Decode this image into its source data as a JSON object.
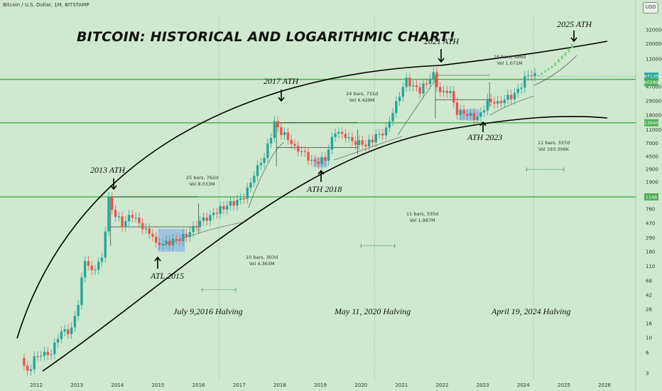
{
  "header": {
    "symbol_line": "Bitcoin / U.S. Dollar, 1M, BITSTAMP",
    "currency_button": "USD"
  },
  "title": "BITCOIN: HISTORICAL AND LOGARITHMIC CHART!",
  "annotations": {
    "ath_2013": "2013 ATH",
    "ath_2017": "2017 ATH",
    "ath_2021": "2021 ATH",
    "ath_2025": "2025 ATH",
    "atl_2015": "ATL 2015",
    "ath_2018": "ATH 2018",
    "ath_2023": "ATH 2023",
    "halving_2016": "July 9,2016 Halving",
    "halving_2020": "May 11, 2020 Halving",
    "halving_2024": "April 19, 2024 Halving"
  },
  "measures": [
    {
      "bars": "25 bars, 762d",
      "vol": "Vol 8.033M"
    },
    {
      "bars": "10 bars, 303d",
      "vol": "Vol 4.363M"
    },
    {
      "bars": "24 bars, 731d",
      "vol": "Vol 6.428M"
    },
    {
      "bars": "11 bars, 335d",
      "vol": "Vol 1.987M"
    },
    {
      "bars": "16 bars, 486d",
      "vol": "Vol 1.071M"
    },
    {
      "bars": "11 bars, 337d",
      "vol": "Vol 193.306K"
    }
  ],
  "price_badges": {
    "current": "67135",
    "countdown": "7d 16h",
    "level_60289": "60289",
    "level_13945": "13945",
    "level_1146": "1146"
  },
  "colors": {
    "background": "#cfe8cf",
    "up_candle": "#26a69a",
    "down_candle": "#ef5350",
    "projection": "#7bd17b",
    "level_line": "#4caf50",
    "accumulation_box": "#8fb8e6"
  },
  "chart_data": {
    "type": "candlestick",
    "title": "BITCOIN: HISTORICAL AND LOGARITHMIC CHART!",
    "y_scale": "log",
    "y_ticks": [
      3,
      6,
      10,
      16,
      26,
      42,
      68,
      110,
      180,
      290,
      470,
      760,
      1900,
      2900,
      4500,
      7000,
      11000,
      18000,
      29000,
      47000,
      120000,
      200000,
      320000
    ],
    "x_ticks": [
      "2012",
      "2013",
      "2014",
      "2015",
      "2016",
      "2017",
      "2018",
      "2019",
      "2020",
      "2021",
      "2022",
      "2023",
      "2024",
      "2025",
      "2026"
    ],
    "horizontal_levels": [
      60289,
      13945,
      1146
    ],
    "last_price": 67135,
    "price_keypoints": [
      [
        "2011-09",
        5
      ],
      [
        "2011-11",
        3
      ],
      [
        "2012-01",
        5
      ],
      [
        "2012-06",
        6
      ],
      [
        "2012-09",
        12
      ],
      [
        "2012-12",
        13
      ],
      [
        "2013-02",
        33
      ],
      [
        "2013-04",
        140
      ],
      [
        "2013-06",
        97
      ],
      [
        "2013-09",
        140
      ],
      [
        "2013-11",
        1146
      ],
      [
        "2013-12",
        750
      ],
      [
        "2014-03",
        450
      ],
      [
        "2014-06",
        640
      ],
      [
        "2014-09",
        385
      ],
      [
        "2014-12",
        320
      ],
      [
        "2015-01",
        220
      ],
      [
        "2015-06",
        260
      ],
      [
        "2015-10",
        310
      ],
      [
        "2015-12",
        430
      ],
      [
        "2016-06",
        670
      ],
      [
        "2016-12",
        960
      ],
      [
        "2017-03",
        1080
      ],
      [
        "2017-06",
        2500
      ],
      [
        "2017-09",
        4300
      ],
      [
        "2017-12",
        13945
      ],
      [
        "2018-02",
        10300
      ],
      [
        "2018-06",
        6400
      ],
      [
        "2018-11",
        4000
      ],
      [
        "2018-12",
        3700
      ],
      [
        "2019-03",
        4100
      ],
      [
        "2019-06",
        10800
      ],
      [
        "2019-09",
        8300
      ],
      [
        "2019-12",
        7200
      ],
      [
        "2020-03",
        6400
      ],
      [
        "2020-06",
        9100
      ],
      [
        "2020-09",
        10800
      ],
      [
        "2020-12",
        29000
      ],
      [
        "2021-03",
        58800
      ],
      [
        "2021-07",
        41500
      ],
      [
        "2021-10",
        61300
      ],
      [
        "2021-11",
        69000
      ],
      [
        "2022-01",
        38500
      ],
      [
        "2022-04",
        37700
      ],
      [
        "2022-06",
        19900
      ],
      [
        "2022-11",
        17100
      ],
      [
        "2022-12",
        16500
      ],
      [
        "2023-03",
        28500
      ],
      [
        "2023-07",
        29200
      ],
      [
        "2023-10",
        34600
      ],
      [
        "2023-12",
        42300
      ],
      [
        "2024-02",
        61100
      ],
      [
        "2024-03",
        71300
      ],
      [
        "2024-04",
        67135
      ]
    ],
    "projection_keypoints": [
      [
        "2024-05",
        70000
      ],
      [
        "2024-09",
        95000
      ],
      [
        "2025-01",
        150000
      ],
      [
        "2025-03",
        200000
      ]
    ]
  }
}
